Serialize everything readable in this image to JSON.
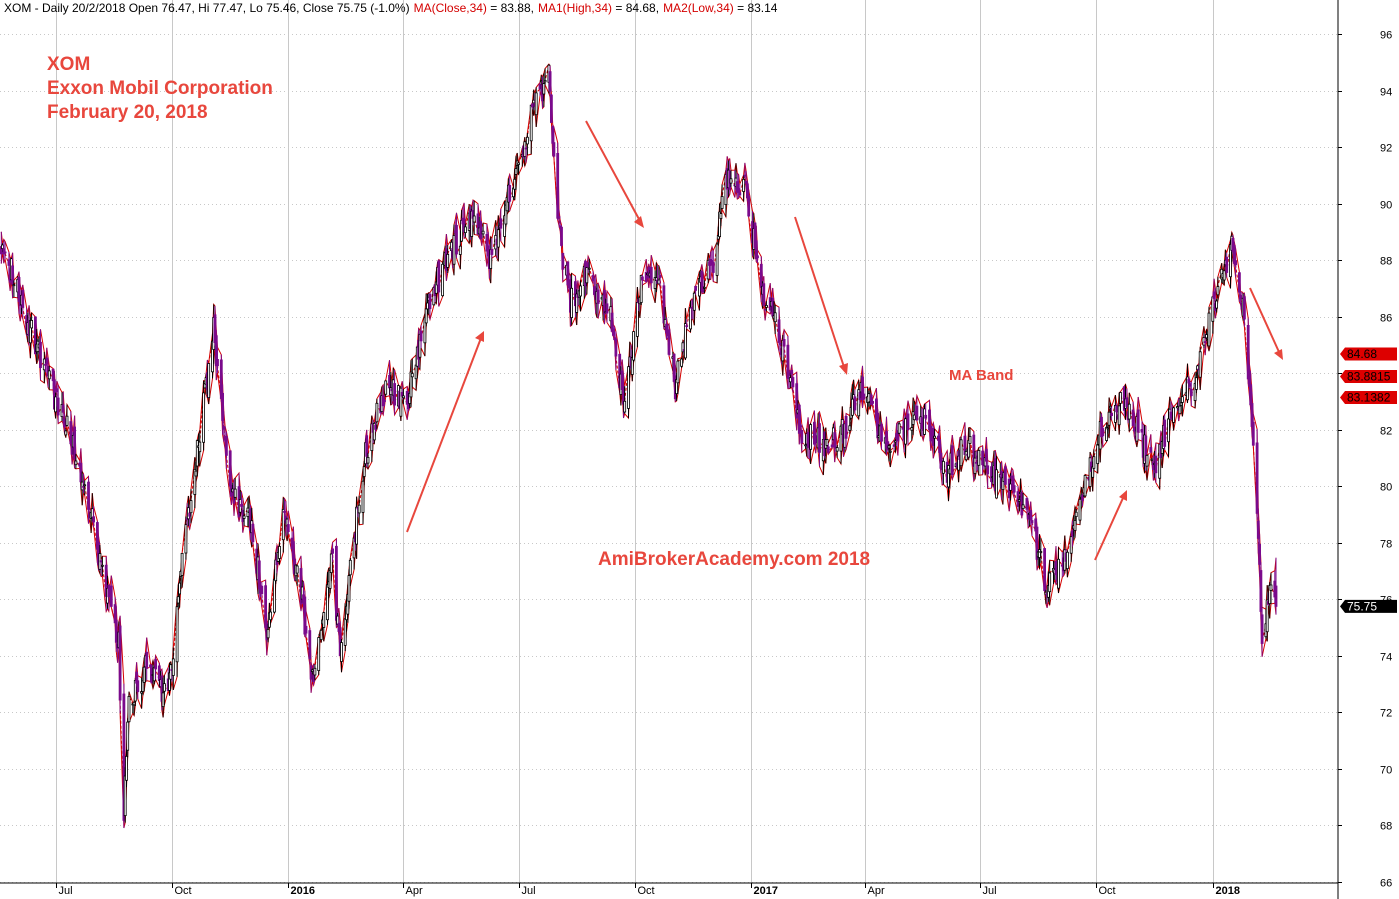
{
  "header": {
    "prefix": "XOM - Daily 20/2/2018 Open 76.47, Hi 77.47, Lo 75.46, Close 75.75 (-1.0%)",
    "ma": "MA(Close,34)",
    "ma_value": " = 83.88,",
    "ma1": "MA1(High,34)",
    "ma1_value": " = 84.68,",
    "ma2": "MA2(Low,34)",
    "ma2_value": " = 83.14"
  },
  "title": {
    "ticker": "XOM",
    "company": "Exxon Mobil Corporation",
    "date": "February 20, 2018"
  },
  "annotations": {
    "ma_band": "MA Band",
    "watermark": "AmiBrokerAcademy.com  2018"
  },
  "price_tags": {
    "ma_high": "84.68",
    "ma_close": "83.8815",
    "ma_low": "83.1382",
    "last_close": "75.75"
  },
  "colors": {
    "candle_up": "#000000",
    "candle_down": "#7b0a8c",
    "ma_band": "#d40000",
    "annotation": "#e8473d",
    "tag_red": "#dd0000",
    "grid": "#c8c8c8"
  },
  "chart_data": {
    "type": "candlestick",
    "symbol": "XOM",
    "ylim": [
      66,
      96.5
    ],
    "y_ticks": [
      66,
      68,
      70,
      72,
      74,
      76,
      78,
      80,
      82,
      84,
      86,
      88,
      90,
      92,
      94,
      96
    ],
    "x_range": [
      "2015-05-18",
      "2018-04-10"
    ],
    "x_ticks": [
      {
        "date": "2015-07-01",
        "label": "Jul",
        "bold": false
      },
      {
        "date": "2015-10-01",
        "label": "Oct",
        "bold": false
      },
      {
        "date": "2016-01-01",
        "label": "2016",
        "bold": true
      },
      {
        "date": "2016-04-01",
        "label": "Apr",
        "bold": false
      },
      {
        "date": "2016-07-01",
        "label": "Jul",
        "bold": false
      },
      {
        "date": "2016-10-01",
        "label": "Oct",
        "bold": false
      },
      {
        "date": "2017-01-01",
        "label": "2017",
        "bold": true
      },
      {
        "date": "2017-04-01",
        "label": "Apr",
        "bold": false
      },
      {
        "date": "2017-07-01",
        "label": "Jul",
        "bold": false
      },
      {
        "date": "2017-10-01",
        "label": "Oct",
        "bold": false
      },
      {
        "date": "2018-01-01",
        "label": "2018",
        "bold": true
      }
    ],
    "close_path": [
      {
        "date": "2015-05-19",
        "close": 88.5
      },
      {
        "date": "2015-06-01",
        "close": 87.0
      },
      {
        "date": "2015-06-15",
        "close": 85.0
      },
      {
        "date": "2015-07-01",
        "close": 83.0
      },
      {
        "date": "2015-07-15",
        "close": 81.5
      },
      {
        "date": "2015-07-29",
        "close": 79.0
      },
      {
        "date": "2015-08-07",
        "close": 77.0
      },
      {
        "date": "2015-08-20",
        "close": 74.5
      },
      {
        "date": "2015-08-24",
        "close": 68.0
      },
      {
        "date": "2015-08-27",
        "close": 72.0
      },
      {
        "date": "2015-09-10",
        "close": 73.5
      },
      {
        "date": "2015-09-28",
        "close": 72.5
      },
      {
        "date": "2015-10-08",
        "close": 77.0
      },
      {
        "date": "2015-10-20",
        "close": 81.0
      },
      {
        "date": "2015-11-03",
        "close": 85.5
      },
      {
        "date": "2015-11-16",
        "close": 80.0
      },
      {
        "date": "2015-12-03",
        "close": 78.5
      },
      {
        "date": "2015-12-15",
        "close": 75.0
      },
      {
        "date": "2015-12-29",
        "close": 79.0
      },
      {
        "date": "2016-01-12",
        "close": 76.0
      },
      {
        "date": "2016-01-20",
        "close": 73.0
      },
      {
        "date": "2016-02-05",
        "close": 77.5
      },
      {
        "date": "2016-02-11",
        "close": 74.0
      },
      {
        "date": "2016-03-01",
        "close": 81.0
      },
      {
        "date": "2016-03-18",
        "close": 83.5
      },
      {
        "date": "2016-04-04",
        "close": 83.0
      },
      {
        "date": "2016-04-20",
        "close": 86.5
      },
      {
        "date": "2016-05-06",
        "close": 88.0
      },
      {
        "date": "2016-05-24",
        "close": 89.5
      },
      {
        "date": "2016-06-10",
        "close": 88.0
      },
      {
        "date": "2016-06-24",
        "close": 90.5
      },
      {
        "date": "2016-07-11",
        "close": 93.0
      },
      {
        "date": "2016-07-25",
        "close": 94.5
      },
      {
        "date": "2016-08-02",
        "close": 89.0
      },
      {
        "date": "2016-08-11",
        "close": 86.5
      },
      {
        "date": "2016-08-25",
        "close": 87.5
      },
      {
        "date": "2016-09-12",
        "close": 86.0
      },
      {
        "date": "2016-09-23",
        "close": 82.8
      },
      {
        "date": "2016-10-06",
        "close": 87.0
      },
      {
        "date": "2016-10-20",
        "close": 87.5
      },
      {
        "date": "2016-11-02",
        "close": 83.5
      },
      {
        "date": "2016-11-15",
        "close": 86.5
      },
      {
        "date": "2016-12-02",
        "close": 88.0
      },
      {
        "date": "2016-12-12",
        "close": 91.0
      },
      {
        "date": "2016-12-27",
        "close": 90.5
      },
      {
        "date": "2017-01-10",
        "close": 87.0
      },
      {
        "date": "2017-01-26",
        "close": 85.0
      },
      {
        "date": "2017-02-09",
        "close": 82.0
      },
      {
        "date": "2017-02-28",
        "close": 81.5
      },
      {
        "date": "2017-03-15",
        "close": 82.0
      },
      {
        "date": "2017-03-31",
        "close": 83.5
      },
      {
        "date": "2017-04-17",
        "close": 81.5
      },
      {
        "date": "2017-05-02",
        "close": 82.0
      },
      {
        "date": "2017-05-19",
        "close": 82.5
      },
      {
        "date": "2017-06-05",
        "close": 80.5
      },
      {
        "date": "2017-06-21",
        "close": 81.5
      },
      {
        "date": "2017-07-07",
        "close": 80.5
      },
      {
        "date": "2017-07-24",
        "close": 80.0
      },
      {
        "date": "2017-08-08",
        "close": 79.0
      },
      {
        "date": "2017-08-22",
        "close": 76.5
      },
      {
        "date": "2017-09-06",
        "close": 77.5
      },
      {
        "date": "2017-09-20",
        "close": 80.0
      },
      {
        "date": "2017-10-05",
        "close": 82.0
      },
      {
        "date": "2017-10-20",
        "close": 83.0
      },
      {
        "date": "2017-11-03",
        "close": 82.0
      },
      {
        "date": "2017-11-15",
        "close": 80.5
      },
      {
        "date": "2017-12-01",
        "close": 83.0
      },
      {
        "date": "2017-12-15",
        "close": 83.5
      },
      {
        "date": "2018-01-02",
        "close": 86.5
      },
      {
        "date": "2018-01-16",
        "close": 88.5
      },
      {
        "date": "2018-01-26",
        "close": 86.0
      },
      {
        "date": "2018-02-05",
        "close": 79.0
      },
      {
        "date": "2018-02-09",
        "close": 74.5
      },
      {
        "date": "2018-02-14",
        "close": 76.2
      },
      {
        "date": "2018-02-20",
        "close": 75.75
      }
    ],
    "ma_band": {
      "period": 34,
      "last": {
        "high": 84.68,
        "close": 83.8815,
        "low": 83.1382
      }
    }
  }
}
